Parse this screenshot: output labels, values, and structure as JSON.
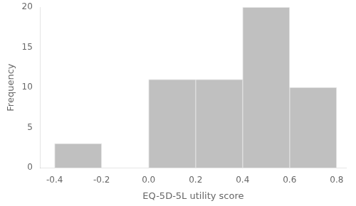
{
  "chart_data": {
    "type": "histogram",
    "bins": [
      -0.4,
      -0.2,
      0.0,
      0.2,
      0.4,
      0.6,
      0.8
    ],
    "values": [
      3,
      0,
      11,
      11,
      20,
      10
    ],
    "color": "#c0c0c0",
    "x_label": "EQ-5D-5L utility score",
    "y_label": "Frequency",
    "xlim": [
      -0.46,
      0.84
    ],
    "ylim": [
      0,
      20
    ],
    "xticks": [
      -0.4,
      -0.2,
      {
        "value": 0.0,
        "label": "0.0"
      },
      0.2,
      0.4,
      0.6,
      0.8
    ],
    "yticks": [
      0,
      5,
      10,
      15,
      20
    ],
    "grid": false
  }
}
